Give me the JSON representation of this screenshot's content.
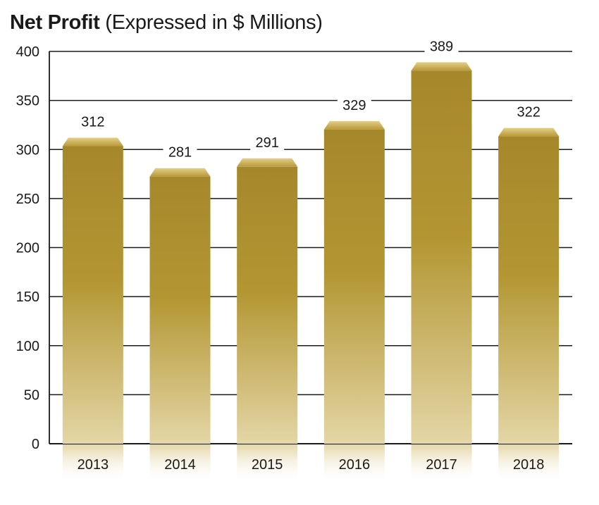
{
  "chart_data": {
    "type": "bar",
    "title": "Net Profit",
    "subtitle": "(Expressed in $ Millions)",
    "categories": [
      "2013",
      "2014",
      "2015",
      "2016",
      "2017",
      "2018"
    ],
    "values": [
      312,
      281,
      291,
      329,
      389,
      322
    ],
    "data_labels": [
      "312",
      "281",
      "291",
      "329",
      "389",
      "322"
    ],
    "ylim": [
      0,
      400
    ],
    "yticks": [
      0,
      50,
      100,
      150,
      200,
      250,
      300,
      350,
      400
    ],
    "grid": true,
    "legend": "none",
    "colors": {
      "bar_top": "#a6882c",
      "bar_mid": "#b39632",
      "bar_bottom": "#e4d6a6",
      "cap_light": "#dcc77c",
      "cap_dark": "#a8892f",
      "grid": "#1a1a1a"
    }
  }
}
